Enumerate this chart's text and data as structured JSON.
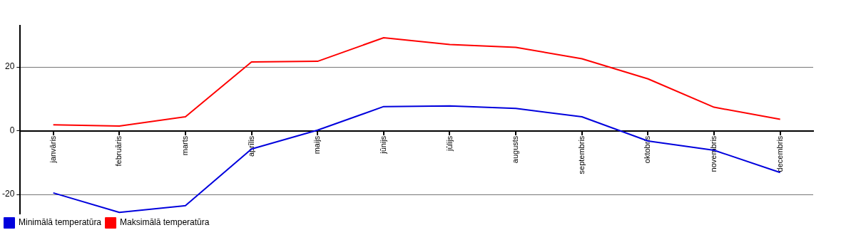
{
  "chart_data": {
    "type": "line",
    "categories": [
      "janvāris",
      "februāris",
      "marts",
      "aprīlis",
      "maijs",
      "jūnijs",
      "jūlijs",
      "augusts",
      "septembris",
      "oktobris",
      "novembris",
      "decembris"
    ],
    "series": [
      {
        "name": "Minimālā temperatūra",
        "color": "#0000dd",
        "values": [
          -19.5,
          -25.6,
          -23.5,
          -5.7,
          0.2,
          7.6,
          7.8,
          7.0,
          4.4,
          -3.2,
          -6.1,
          -13.1
        ]
      },
      {
        "name": "Maksimālā temperatūra",
        "color": "#ff0000",
        "values": [
          1.9,
          1.5,
          4.4,
          21.6,
          21.8,
          29.2,
          27.1,
          26.2,
          22.6,
          16.3,
          7.4,
          3.6
        ]
      }
    ],
    "ylim": [
      -26,
      33
    ],
    "yticks": [
      -20,
      0,
      20
    ],
    "grid": "y",
    "legend": "bottom left",
    "marker": "none",
    "line_style": "solid"
  }
}
